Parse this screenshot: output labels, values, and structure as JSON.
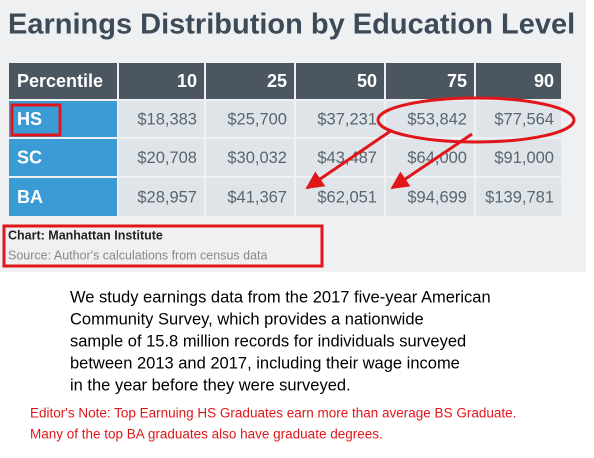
{
  "title": "Earnings Distribution by Education Level",
  "table": {
    "header": [
      "Percentile",
      "10",
      "25",
      "50",
      "75",
      "90"
    ],
    "rows": [
      [
        "HS",
        "$18,383",
        "$25,700",
        "$37,231",
        "$53,842",
        "$77,564"
      ],
      [
        "SC",
        "$20,708",
        "$30,032",
        "$43,487",
        "$64,000",
        "$91,000"
      ],
      [
        "BA",
        "$28,957",
        "$41,367",
        "$62,051",
        "$94,699",
        "$139,781"
      ]
    ]
  },
  "credit": "Chart: Manhattan Institute",
  "source": "Source: Author's calculations from census data",
  "body": [
    "We study earnings data from the 2017 five-year American",
    "Community Survey, which provides a nationwide",
    "sample of 15.8 million records for individuals surveyed",
    "between 2013 and 2017, including their wage income",
    "in the year before they were surveyed."
  ],
  "note": [
    "Editor's Note: Top Earnuing HS Graduates earn more than average BS Graduate.",
    "Many of the top BA graduates also have graduate degrees."
  ]
}
